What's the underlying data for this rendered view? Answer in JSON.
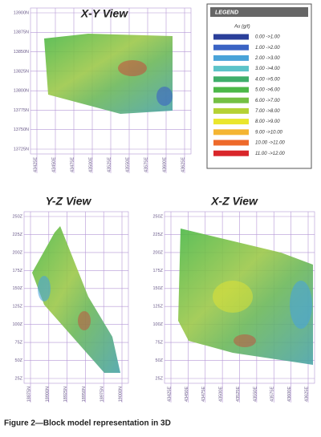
{
  "figure": {
    "caption": "Figure 2—Block model representation in 3D",
    "xy_view": {
      "title": "X-Y View",
      "y_labels": [
        "13900N",
        "13875N",
        "13850N",
        "13825N",
        "13800N",
        "13775N",
        "13750N",
        "13725N"
      ],
      "x_labels": [
        "43425E",
        "43450E",
        "43475E",
        "43500E",
        "43525E",
        "43550E",
        "43575E",
        "43600E",
        "43625E"
      ]
    },
    "yz_view": {
      "title": "Y-Z View",
      "y_labels": [
        "250Z",
        "225Z",
        "200Z",
        "175Z",
        "150Z",
        "125Z",
        "100Z",
        "75Z",
        "50Z",
        "25Z"
      ],
      "x_labels": [
        "18875N",
        "18900N",
        "18925N",
        "18950N",
        "18975N",
        "19000N"
      ]
    },
    "xz_view": {
      "title": "X-Z View",
      "y_labels": [
        "250Z",
        "225Z",
        "200Z",
        "175Z",
        "150Z",
        "125Z",
        "100Z",
        "75Z",
        "50Z",
        "25Z"
      ],
      "x_labels": [
        "43425E",
        "43450E",
        "43475E",
        "43500E",
        "43525E",
        "43550E",
        "43575E",
        "43600E",
        "43625E"
      ]
    },
    "legend": {
      "title": "LEGEND",
      "subtitle": "Au (g/t)",
      "entries": [
        {
          "label": "0.00 ->1.00",
          "color": "#2a3f9a"
        },
        {
          "label": "1.00 ->2.00",
          "color": "#3a63c4"
        },
        {
          "label": "2.00 ->3.00",
          "color": "#4aa3d8"
        },
        {
          "label": "3.00 ->4.00",
          "color": "#5cc3c8"
        },
        {
          "label": "4.00 ->5.00",
          "color": "#3fae6a"
        },
        {
          "label": "5.00 ->6.00",
          "color": "#4cb848"
        },
        {
          "label": "6.00 ->7.00",
          "color": "#74c043"
        },
        {
          "label": "7.00 ->8.00",
          "color": "#b5d234"
        },
        {
          "label": "8.00 ->9.00",
          "color": "#eae62c"
        },
        {
          "label": "9.00 ->10.00",
          "color": "#f4b532"
        },
        {
          "label": "10.00 ->11.00",
          "color": "#ee6a2b"
        },
        {
          "label": "11.00 ->12.00",
          "color": "#d9262a"
        }
      ]
    }
  }
}
